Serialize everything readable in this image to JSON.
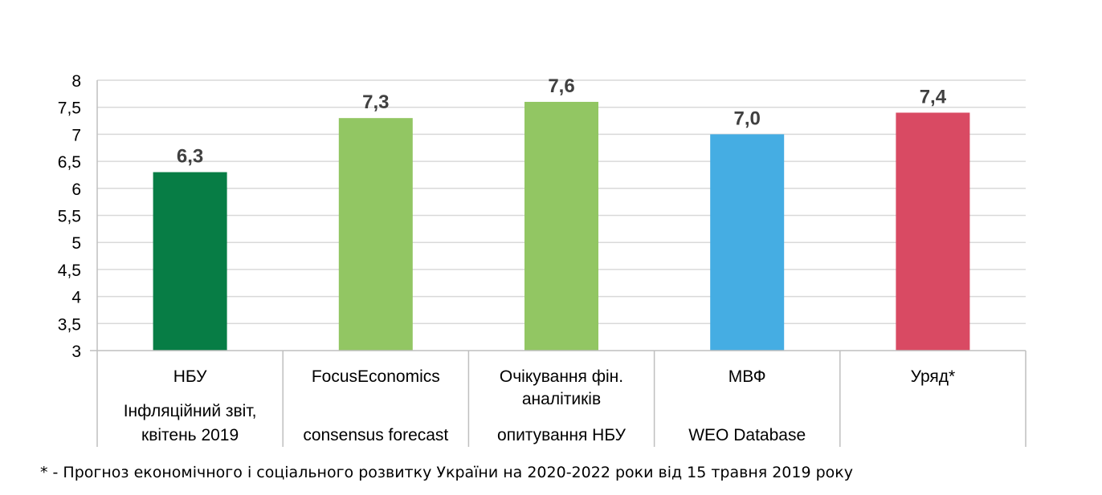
{
  "chart_data": {
    "type": "bar",
    "ylim": [
      3,
      8
    ],
    "yticks": [
      3,
      3.5,
      4,
      4.5,
      5,
      5.5,
      6,
      6.5,
      7,
      7.5,
      8
    ],
    "ytick_labels": [
      "3",
      "3,5",
      "4",
      "4,5",
      "5",
      "5,5",
      "6",
      "6,5",
      "7",
      "7,5",
      "8"
    ],
    "grid": true,
    "categories": [
      {
        "line1": "НБУ",
        "line2": "",
        "line3": "Інфляційний звіт,",
        "line4": "квітень 2019"
      },
      {
        "line1": "FocusEconomics",
        "line2": "",
        "line3": "",
        "line4": "consensus forecast"
      },
      {
        "line1": "Очікування фін.",
        "line2": "аналітиків",
        "line3": "",
        "line4": "опитування НБУ"
      },
      {
        "line1": "МВФ",
        "line2": "",
        "line3": "",
        "line4": "WEO Database"
      },
      {
        "line1": "Уряд*",
        "line2": "",
        "line3": "",
        "line4": ""
      }
    ],
    "values": [
      6.3,
      7.3,
      7.6,
      7.0,
      7.4
    ],
    "data_labels": [
      "6,3",
      "7,3",
      "7,6",
      "7,0",
      "7,4"
    ],
    "colors": [
      "#077d45",
      "#92c663",
      "#92c663",
      "#45ade3",
      "#d94a63"
    ]
  },
  "footnote": "* - Прогноз економічного і соціального розвитку України на 2020-2022 роки від 15 травня 2019 року"
}
